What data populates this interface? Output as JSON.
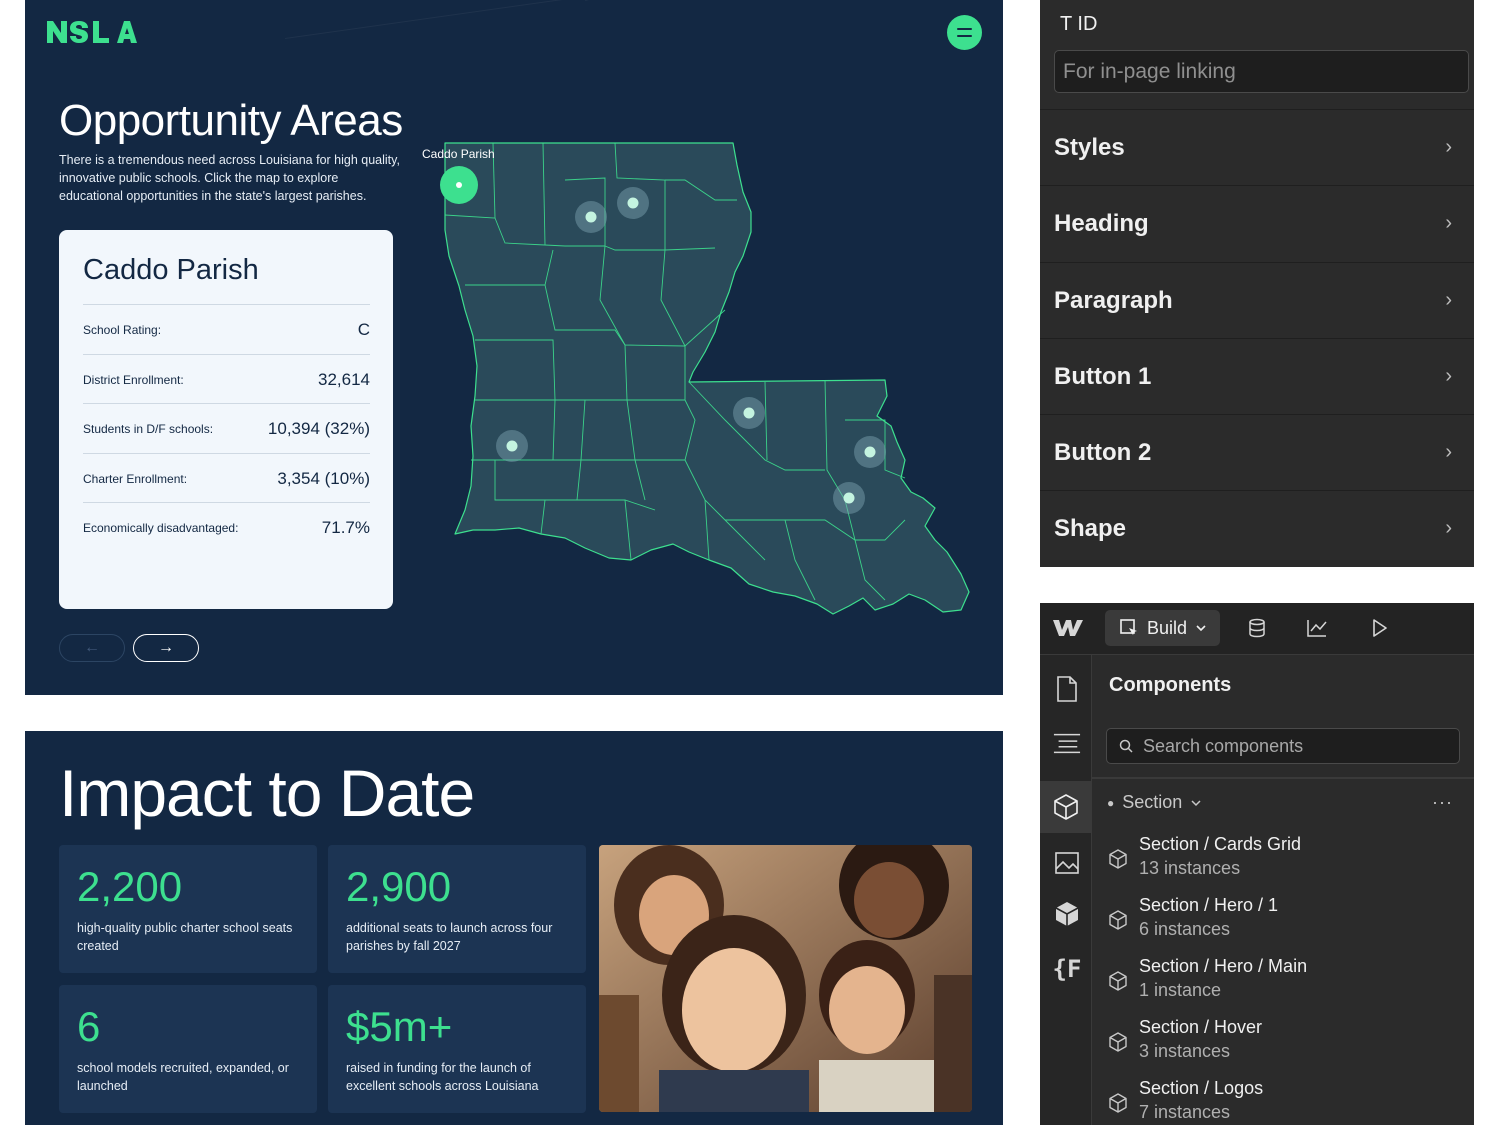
{
  "map_panel": {
    "title": "Opportunity Areas",
    "description": "There is a tremendous need across Louisiana for high quality, innovative public schools. Click the map to explore educational opportunities in the state's largest parishes.",
    "map_label": "Caddo Parish",
    "accent": "#3de08f",
    "background": "#132843",
    "card": {
      "title": "Caddo Parish",
      "rows": [
        {
          "label": "School Rating:",
          "value": "C"
        },
        {
          "label": "District Enrollment:",
          "value": "32,614"
        },
        {
          "label": "Students in D/F schools:",
          "value": "10,394 (32%)"
        },
        {
          "label": "Charter Enrollment:",
          "value": "3,354 (10%)"
        },
        {
          "label": "Economically disadvantaged:",
          "value": "71.7%"
        }
      ]
    },
    "prev_icon": "←",
    "next_icon": "→"
  },
  "impact_panel": {
    "title": "Impact to Date",
    "stats": [
      {
        "number": "2,200",
        "description": "high-quality public charter school seats created"
      },
      {
        "number": "2,900",
        "description": "additional seats to launch across four parishes by fall 2027"
      },
      {
        "number": "6",
        "description": "school models recruited, expanded, or launched"
      },
      {
        "number": "$5m+",
        "description": "raised in funding for the launch of excellent schools across Louisiana"
      }
    ]
  },
  "settings_panel": {
    "id_label": "T  ID",
    "id_placeholder": "For in-page linking",
    "rows": [
      {
        "label": "Styles"
      },
      {
        "label": "Heading"
      },
      {
        "label": "Paragraph"
      },
      {
        "label": "Button 1"
      },
      {
        "label": "Button 2"
      },
      {
        "label": "Shape"
      }
    ],
    "chevron": "›"
  },
  "components_panel": {
    "build_label": "Build",
    "title": "Components",
    "search_placeholder": "Search components",
    "section_filter": "Section",
    "more": "···",
    "items": [
      {
        "name": "Section / Cards Grid",
        "count": "13 instances"
      },
      {
        "name": "Section / Hero / 1",
        "count": "6 instances"
      },
      {
        "name": "Section / Hero / Main",
        "count": "1 instance"
      },
      {
        "name": "Section / Hover",
        "count": "3 instances"
      },
      {
        "name": "Section / Logos",
        "count": "7 instances"
      }
    ]
  }
}
